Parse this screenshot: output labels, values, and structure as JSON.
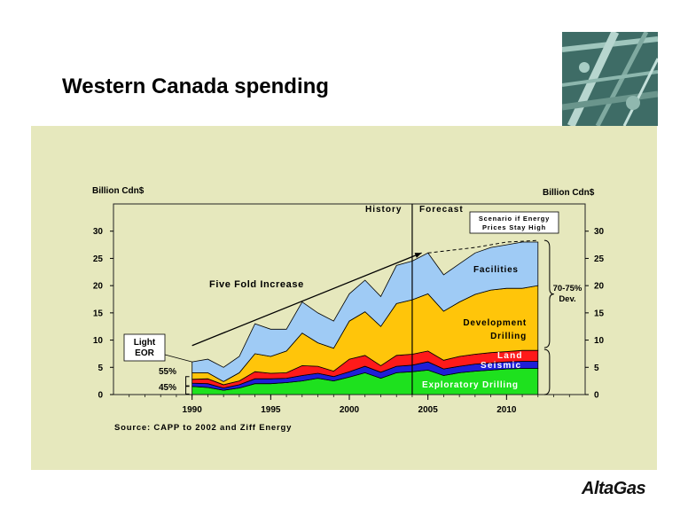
{
  "slide": {
    "title": "Western Canada spending",
    "logo": "AltaGas"
  },
  "colors": {
    "panel": "#e6e8bd",
    "exploratory": "#1ee11e",
    "seismic": "#1f1fd8",
    "land": "#ff1a1a",
    "development": "#ffc50a",
    "facilities": "#9fcbf5"
  },
  "chart_data": {
    "type": "area",
    "stacked": true,
    "x": [
      1990,
      1991,
      1992,
      1993,
      1994,
      1995,
      1996,
      1997,
      1998,
      1999,
      2000,
      2001,
      2002,
      2003,
      2004,
      2005,
      2006,
      2007,
      2008,
      2009,
      2010,
      2011,
      2012
    ],
    "series": [
      {
        "name": "Exploratory Drilling",
        "color": "#1ee11e",
        "values": [
          1.5,
          1.3,
          0.8,
          1.2,
          2.0,
          2.0,
          2.2,
          2.5,
          3.0,
          2.5,
          3.2,
          4.0,
          3.0,
          4.0,
          4.2,
          4.5,
          3.5,
          4.0,
          4.3,
          4.5,
          4.7,
          4.8,
          4.8
        ]
      },
      {
        "name": "Seismic",
        "color": "#1f1fd8",
        "values": [
          0.6,
          0.7,
          0.4,
          0.6,
          0.9,
          0.9,
          0.8,
          1.0,
          0.9,
          0.8,
          1.0,
          1.2,
          1.1,
          1.2,
          1.2,
          1.5,
          1.2,
          1.2,
          1.3,
          1.3,
          1.3,
          1.3,
          1.3
        ]
      },
      {
        "name": "Land",
        "color": "#ff1a1a",
        "values": [
          0.7,
          0.9,
          0.6,
          0.7,
          1.3,
          1.0,
          1.0,
          1.8,
          1.3,
          1.0,
          2.3,
          2.0,
          1.2,
          2.0,
          2.0,
          2.0,
          1.6,
          1.8,
          1.8,
          1.9,
          1.9,
          2.0,
          2.0
        ]
      },
      {
        "name": "Development Drilling",
        "color": "#ffc50a",
        "values": [
          1.2,
          1.1,
          0.6,
          1.5,
          3.3,
          3.1,
          4.0,
          6.0,
          4.3,
          4.2,
          7.0,
          8.0,
          7.2,
          9.5,
          10.0,
          10.5,
          9.0,
          10.0,
          11.0,
          11.5,
          11.6,
          11.4,
          11.9
        ]
      },
      {
        "name": "Facilities",
        "color": "#9fcbf5",
        "values": [
          2.0,
          2.5,
          2.6,
          3.0,
          5.5,
          5.0,
          4.0,
          5.7,
          5.5,
          5.0,
          5.0,
          5.8,
          5.5,
          7.0,
          7.1,
          7.5,
          6.7,
          7.0,
          7.6,
          7.8,
          8.0,
          8.5,
          8.0
        ]
      }
    ],
    "high_price_scenario": {
      "label": "Scenario if Energy Prices Stay High",
      "x": [
        2005,
        2008,
        2010,
        2012
      ],
      "values": [
        26.0,
        27.0,
        28.0,
        28.3
      ]
    },
    "xlim": [
      1985,
      2015
    ],
    "ylim": [
      0,
      35
    ],
    "xticks": [
      "1990",
      "1995",
      "2000",
      "2005",
      "2010"
    ],
    "yticks": [
      "0",
      "5",
      "10",
      "15",
      "20",
      "25",
      "30"
    ],
    "ylabel_left": "Billion Cdn$",
    "ylabel_right": "Billion Cdn$",
    "divider_year": 2004,
    "history_label": "History",
    "forecast_label": "Forecast",
    "annotations": {
      "trend": "Five Fold Increase",
      "light_eor": "Light EOR",
      "pct_55": "55%",
      "pct_45": "45%",
      "dev_share": "70-75% Dev.",
      "facilities": "Facilities",
      "development_drilling": "Development Drilling",
      "land": "Land",
      "seismic": "Seismic",
      "exploratory": "Exploratory Drilling"
    },
    "source": "Source: CAPP to 2002 and Ziff Energy"
  }
}
